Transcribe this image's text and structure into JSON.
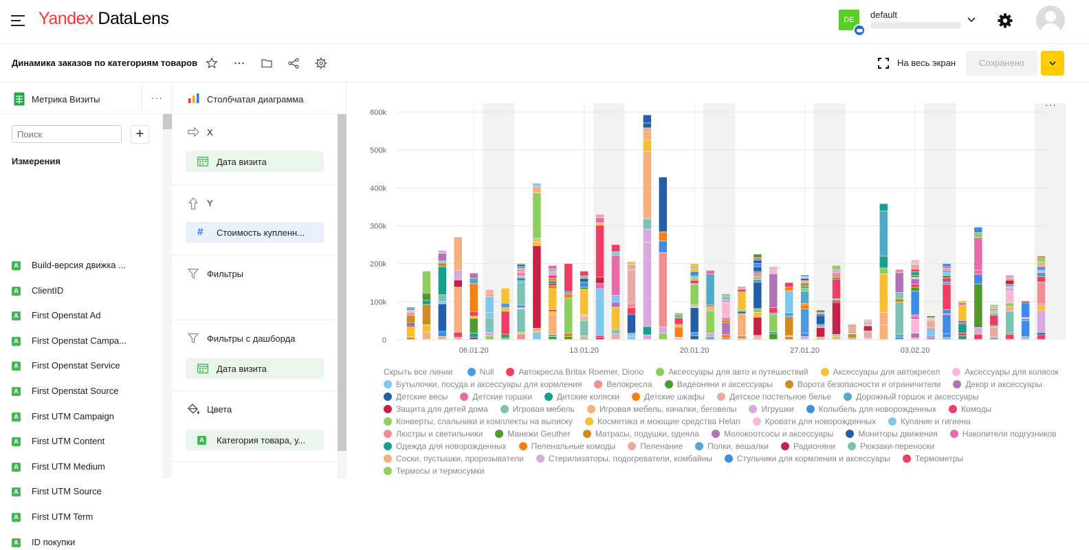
{
  "app": {
    "logo_yandex": "Yandex",
    "logo_product": "DataLens"
  },
  "tenant": {
    "badge": "DE",
    "name": "default"
  },
  "workbook": {
    "title": "Динамика заказов по категориям товаров",
    "fullscreen_label": "На весь экран",
    "save_label": "Сохранено"
  },
  "dataset": {
    "name": "Метрика Визиты",
    "search_placeholder": "Поиск",
    "dimensions_title": "Измерения",
    "fields": [
      "Build-версия движка ...",
      "ClientID",
      "First Openstat Ad",
      "First Openstat Campa...",
      "First Openstat Service",
      "First Openstat Source",
      "First UTM Campaign",
      "First UTM Content",
      "First UTM Medium",
      "First UTM Source",
      "First UTM Term",
      "ID покупки"
    ]
  },
  "visualization": {
    "type_label": "Столбчатая диаграмма",
    "x_label": "X",
    "x_field": "Дата визита",
    "y_label": "Y",
    "y_field": "Стоимость купленн...",
    "filters_label": "Фильтры",
    "dash_filters_label": "Фильтры с дашборда",
    "dash_filters_field": "Дата визита",
    "colors_label": "Цвета",
    "colors_field": "Категория товара, у..."
  },
  "chart_data": {
    "type": "bar",
    "stacked": true,
    "ylim": [
      0,
      600000
    ],
    "y_ticks": [
      "0",
      "100k",
      "200k",
      "300k",
      "400k",
      "500k",
      "600k"
    ],
    "x_ticks": [
      "06.01.20",
      "13.01.20",
      "20.01.20",
      "27.01.20",
      "03.02.20"
    ],
    "totals": [
      85000,
      180000,
      235000,
      270000,
      175000,
      130000,
      135000,
      200000,
      412000,
      195000,
      200000,
      180000,
      330000,
      250000,
      205000,
      592000,
      428000,
      70000,
      200000,
      182000,
      120000,
      140000,
      225000,
      192000,
      150000,
      170000,
      78000,
      195000,
      40000,
      52000,
      358000,
      185000,
      210000,
      62000,
      200000,
      102000,
      296000,
      92000,
      170000,
      102000,
      220000
    ],
    "legend_hide_all": "Скрыть все линии",
    "legend": [
      {
        "name": "Null",
        "color": "#4a9ae8"
      },
      {
        "name": "Автокресла Britax Roemer, Diono",
        "color": "#f03d64"
      },
      {
        "name": "Аксессуары для авто и путешествий",
        "color": "#8ccf5a"
      },
      {
        "name": "Аксессуары для автокресел",
        "color": "#f7c034"
      },
      {
        "name": "Аксессуары для колясок",
        "color": "#f8b6d8"
      },
      {
        "name": "Бутылочки, посуда и аксессуары для кормления",
        "color": "#7ec8ee"
      },
      {
        "name": "Велокресла",
        "color": "#f28c95"
      },
      {
        "name": "Видеоняни и аксессуары",
        "color": "#4e9a2a"
      },
      {
        "name": "Ворота безопасности и ограничители",
        "color": "#d28a1e"
      },
      {
        "name": "Декор и аксессуары",
        "color": "#b073b8"
      },
      {
        "name": "Детские весы",
        "color": "#235fa8"
      },
      {
        "name": "Детские горшки",
        "color": "#e86aa8"
      },
      {
        "name": "Детские коляски",
        "color": "#17a08f"
      },
      {
        "name": "Детские шкафы",
        "color": "#fb7f10"
      },
      {
        "name": "Детское постельное белье",
        "color": "#e8aaa2"
      },
      {
        "name": "Дорожный горшок и аксессуары",
        "color": "#4eaac8"
      },
      {
        "name": "Защита для детей дома",
        "color": "#c82046"
      },
      {
        "name": "Игровая мебель",
        "color": "#7dc3b3"
      },
      {
        "name": "Игровая мебель, качалки, беговелы",
        "color": "#f7b07a"
      },
      {
        "name": "Игрушки",
        "color": "#d9a8de"
      },
      {
        "name": "Колыбель для новорожденных",
        "color": "#3f8be8"
      },
      {
        "name": "Комоды",
        "color": "#f03d64"
      },
      {
        "name": "Конверты, спальники и комплекты на выписку",
        "color": "#8ccf5a"
      },
      {
        "name": "Косметика и моющие средства Helan",
        "color": "#f7c034"
      },
      {
        "name": "Кровати для новорожденных",
        "color": "#f8b6d8"
      },
      {
        "name": "Купание и гигиена",
        "color": "#7ec8ee"
      },
      {
        "name": "Люстры и светильники",
        "color": "#f28c95"
      },
      {
        "name": "Манежи Geuther",
        "color": "#4e9a2a"
      },
      {
        "name": "Матрасы, подушки, одеяла",
        "color": "#d28a1e"
      },
      {
        "name": "Молокоотсосы и аксессуары",
        "color": "#b073b8"
      },
      {
        "name": "Мониторы движения",
        "color": "#235fa8"
      },
      {
        "name": "Накопители подгузников",
        "color": "#e86aa8"
      },
      {
        "name": "Одежда для новорожденных",
        "color": "#17a08f"
      },
      {
        "name": "Пеленальные комоды",
        "color": "#fb7f10"
      },
      {
        "name": "Пеленание",
        "color": "#e8aaa2"
      },
      {
        "name": "Полки, вешалки",
        "color": "#4eaac8"
      },
      {
        "name": "Радионяни",
        "color": "#c82046"
      },
      {
        "name": "Рюкзаки-переноски",
        "color": "#7dc3b3"
      },
      {
        "name": "Соски, пустышки, прорезыватели",
        "color": "#f7b07a"
      },
      {
        "name": "Стерилизаторы, подогреватели, комбайны",
        "color": "#d9a8de"
      },
      {
        "name": "Стульчики для кормления и аксессуары",
        "color": "#3f8be8"
      },
      {
        "name": "Термометры",
        "color": "#f03d64"
      },
      {
        "name": "Термосы и термосумки",
        "color": "#8ccf5a"
      }
    ]
  }
}
